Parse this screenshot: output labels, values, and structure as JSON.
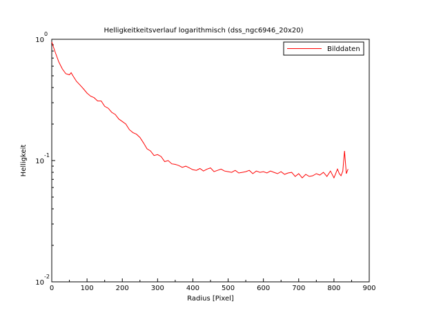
{
  "chart_data": {
    "type": "line",
    "title": "Helligkeitkeitsverlauf logarithmisch (dss_ngc6946_20x20)",
    "xlabel": "Radius [Pixel]",
    "ylabel": "Helligkeit",
    "xlim": [
      0,
      900
    ],
    "ylim": [
      0.01,
      1
    ],
    "yscale": "log",
    "grid": false,
    "legend_position": "top-right",
    "x_ticks": [
      "0",
      "100",
      "200",
      "300",
      "400",
      "500",
      "600",
      "700",
      "800",
      "900"
    ],
    "y_ticks": [
      {
        "base": "10",
        "exp": "0"
      },
      {
        "base": "10",
        "exp": "-1"
      },
      {
        "base": "10",
        "exp": "-2"
      }
    ],
    "series": [
      {
        "name": "Bilddaten",
        "color": "#ff0000",
        "x": [
          0,
          10,
          20,
          30,
          40,
          50,
          55,
          60,
          70,
          80,
          90,
          100,
          110,
          120,
          130,
          140,
          150,
          160,
          170,
          180,
          190,
          200,
          210,
          220,
          230,
          240,
          250,
          260,
          270,
          280,
          290,
          300,
          310,
          320,
          330,
          340,
          350,
          360,
          370,
          380,
          390,
          400,
          410,
          420,
          430,
          440,
          450,
          460,
          470,
          480,
          490,
          500,
          510,
          520,
          530,
          540,
          550,
          560,
          570,
          580,
          590,
          600,
          610,
          620,
          630,
          640,
          650,
          660,
          670,
          680,
          690,
          700,
          710,
          720,
          730,
          740,
          750,
          760,
          770,
          780,
          790,
          800,
          810,
          815,
          820,
          825,
          830,
          835,
          840
        ],
        "y": [
          0.95,
          0.78,
          0.65,
          0.57,
          0.52,
          0.51,
          0.53,
          0.5,
          0.45,
          0.42,
          0.39,
          0.36,
          0.34,
          0.33,
          0.31,
          0.31,
          0.28,
          0.27,
          0.25,
          0.24,
          0.22,
          0.21,
          0.2,
          0.18,
          0.17,
          0.165,
          0.155,
          0.14,
          0.125,
          0.12,
          0.11,
          0.112,
          0.108,
          0.098,
          0.1,
          0.094,
          0.093,
          0.091,
          0.088,
          0.09,
          0.087,
          0.084,
          0.083,
          0.086,
          0.082,
          0.085,
          0.087,
          0.081,
          0.083,
          0.085,
          0.082,
          0.081,
          0.08,
          0.083,
          0.079,
          0.08,
          0.081,
          0.083,
          0.078,
          0.082,
          0.08,
          0.081,
          0.079,
          0.082,
          0.08,
          0.078,
          0.081,
          0.077,
          0.079,
          0.08,
          0.074,
          0.078,
          0.072,
          0.077,
          0.074,
          0.075,
          0.078,
          0.076,
          0.08,
          0.074,
          0.082,
          0.072,
          0.085,
          0.078,
          0.075,
          0.082,
          0.12,
          0.078,
          0.085
        ]
      }
    ]
  }
}
